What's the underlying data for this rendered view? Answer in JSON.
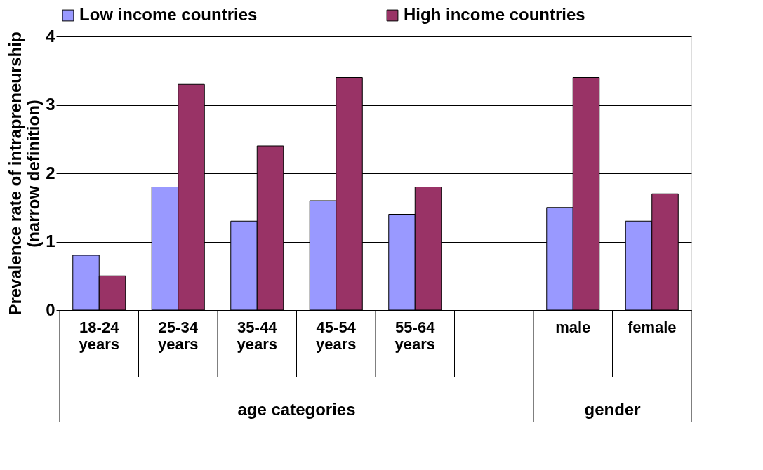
{
  "chart_data": {
    "type": "bar",
    "ylabel": "Prevalence rate of intrapreneurship (narrow definition)",
    "categories": [
      "18-24 years",
      "25-34 years",
      "35-44 years",
      "45-54 years",
      "55-64 years",
      null,
      "male",
      "female"
    ],
    "series": [
      {
        "name": "Low income countries",
        "color": "#9999ff",
        "values": [
          0.8,
          1.8,
          1.3,
          1.6,
          1.4,
          null,
          1.5,
          1.3
        ]
      },
      {
        "name": "High income countries",
        "color": "#993366",
        "values": [
          0.5,
          3.3,
          2.4,
          3.4,
          1.8,
          null,
          3.4,
          1.7
        ]
      }
    ],
    "ylim": [
      0,
      4
    ],
    "yticks": [
      0,
      1,
      2,
      3,
      4
    ],
    "grid": "y",
    "legend": "top",
    "annotations": [
      "age categories",
      "gender"
    ]
  }
}
